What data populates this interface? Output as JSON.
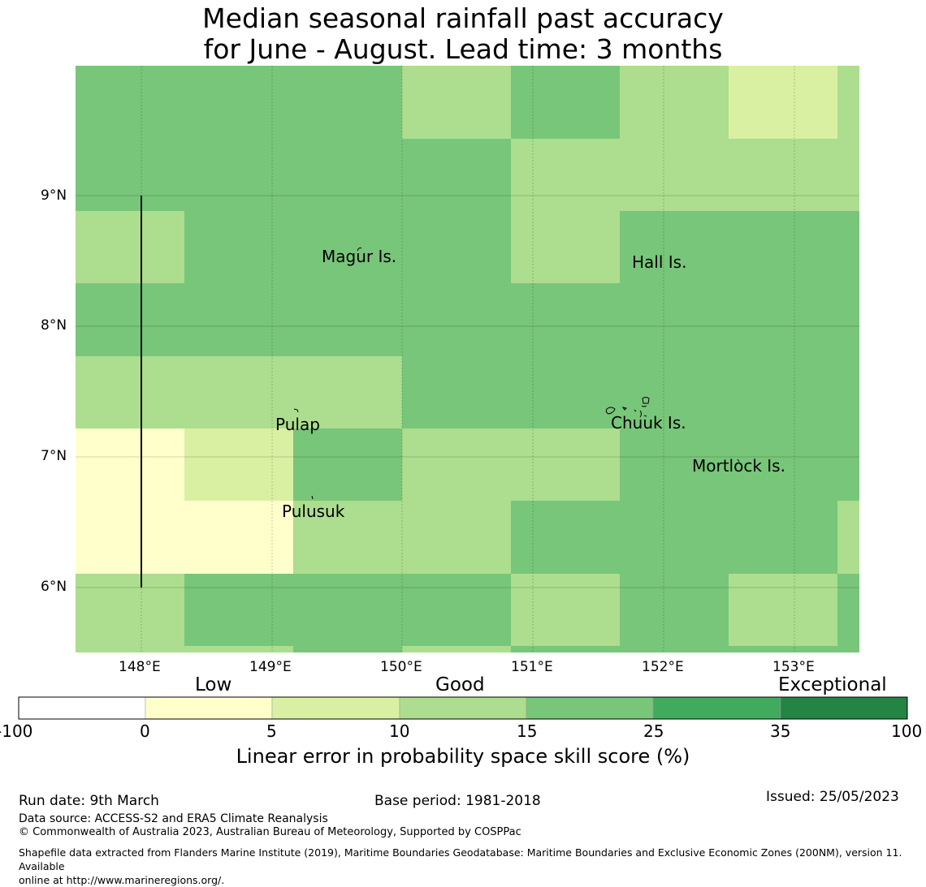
{
  "title": {
    "line1": "Median seasonal rainfall past accuracy",
    "line2": "for June - August. Lead time: 3 months"
  },
  "map": {
    "lat_labels": [
      "9°N",
      "8°N",
      "7°N",
      "6°N"
    ],
    "lon_labels": [
      "148°E",
      "149°E",
      "150°E",
      "151°E",
      "152°E",
      "153°E"
    ],
    "places": [
      "Magur Is.",
      "Hall Is.",
      "Pulap",
      "Chuuk Is.",
      "Mortlock Is.",
      "Pulusuk"
    ],
    "category_colors": {
      "lt0": "#ffffff",
      "0-5": "#ffffcc",
      "5-10": "#d9f0a3",
      "10-15": "#addd8e",
      "15-25": "#78c679",
      "25-35": "#41ab5d",
      "35-100": "#238443"
    }
  },
  "colorbar": {
    "categories": [
      "Low",
      "Good",
      "Exceptional"
    ],
    "ticks": [
      "-100",
      "0",
      "5",
      "10",
      "15",
      "25",
      "35",
      "100"
    ],
    "colors": [
      "#ffffff",
      "#ffffcc",
      "#d9f0a3",
      "#addd8e",
      "#78c679",
      "#41ab5d",
      "#238443"
    ],
    "label": "Linear error in probability space skill score (%)"
  },
  "footer": {
    "run_date": "Run date: 9th March",
    "base_period": "Base period: 1981-2018",
    "issued": "Issued: 25/05/2023",
    "data_source": "Data source: ACCESS-S2 and ERA5 Climate Reanalysis",
    "copyright": "© Commonwealth of Australia 2023, Australian Bureau of Meteorology, Supported by COSPPac",
    "shapefile_line1": "Shapefile data extracted from Flanders Marine Institute (2019), Maritime Boundaries Geodatabase: Maritime Boundaries and Exclusive Economic Zones (200NM), version 11. Available",
    "shapefile_line2": "online at http://www.marineregions.org/."
  }
}
